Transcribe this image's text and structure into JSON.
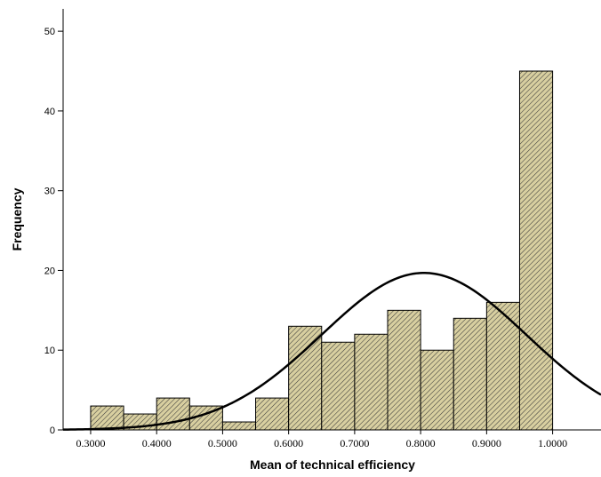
{
  "chart_data": {
    "type": "bar",
    "xlabel": "Mean of technical efficiency",
    "ylabel": "Frequency",
    "bin_width": 0.05,
    "bins": [
      {
        "x0": 0.3,
        "x1": 0.35,
        "value": 3
      },
      {
        "x0": 0.35,
        "x1": 0.4,
        "value": 2
      },
      {
        "x0": 0.4,
        "x1": 0.45,
        "value": 4
      },
      {
        "x0": 0.45,
        "x1": 0.5,
        "value": 3
      },
      {
        "x0": 0.5,
        "x1": 0.55,
        "value": 1
      },
      {
        "x0": 0.55,
        "x1": 0.6,
        "value": 4
      },
      {
        "x0": 0.6,
        "x1": 0.65,
        "value": 13
      },
      {
        "x0": 0.65,
        "x1": 0.7,
        "value": 11
      },
      {
        "x0": 0.7,
        "x1": 0.75,
        "value": 12
      },
      {
        "x0": 0.75,
        "x1": 0.8,
        "value": 15
      },
      {
        "x0": 0.8,
        "x1": 0.85,
        "value": 10
      },
      {
        "x0": 0.85,
        "x1": 0.9,
        "value": 14
      },
      {
        "x0": 0.9,
        "x1": 0.95,
        "value": 16
      },
      {
        "x0": 0.95,
        "x1": 1.0,
        "value": 45
      }
    ],
    "xticks": [
      {
        "value": 0.3,
        "label": "0.3000"
      },
      {
        "value": 0.4,
        "label": "0.4000"
      },
      {
        "value": 0.5,
        "label": "0.5000"
      },
      {
        "value": 0.6,
        "label": "0.6000"
      },
      {
        "value": 0.7,
        "label": "0.7000"
      },
      {
        "value": 0.8,
        "label": "0.8000"
      },
      {
        "value": 0.9,
        "label": "0.9000"
      },
      {
        "value": 1.0,
        "label": "1.0000"
      }
    ],
    "yticks": [
      0,
      10,
      20,
      30,
      40,
      50
    ],
    "xlim": [
      0.2583,
      1.0733
    ],
    "ylim": [
      0,
      52.8
    ],
    "normal_curve": {
      "mean": 0.805,
      "sd": 0.155,
      "n": 153
    },
    "bar_fill": "#d8cfa0",
    "hatch_color": "#3a3a3a",
    "line_color": "#000000",
    "grid": false,
    "legend": "none"
  }
}
